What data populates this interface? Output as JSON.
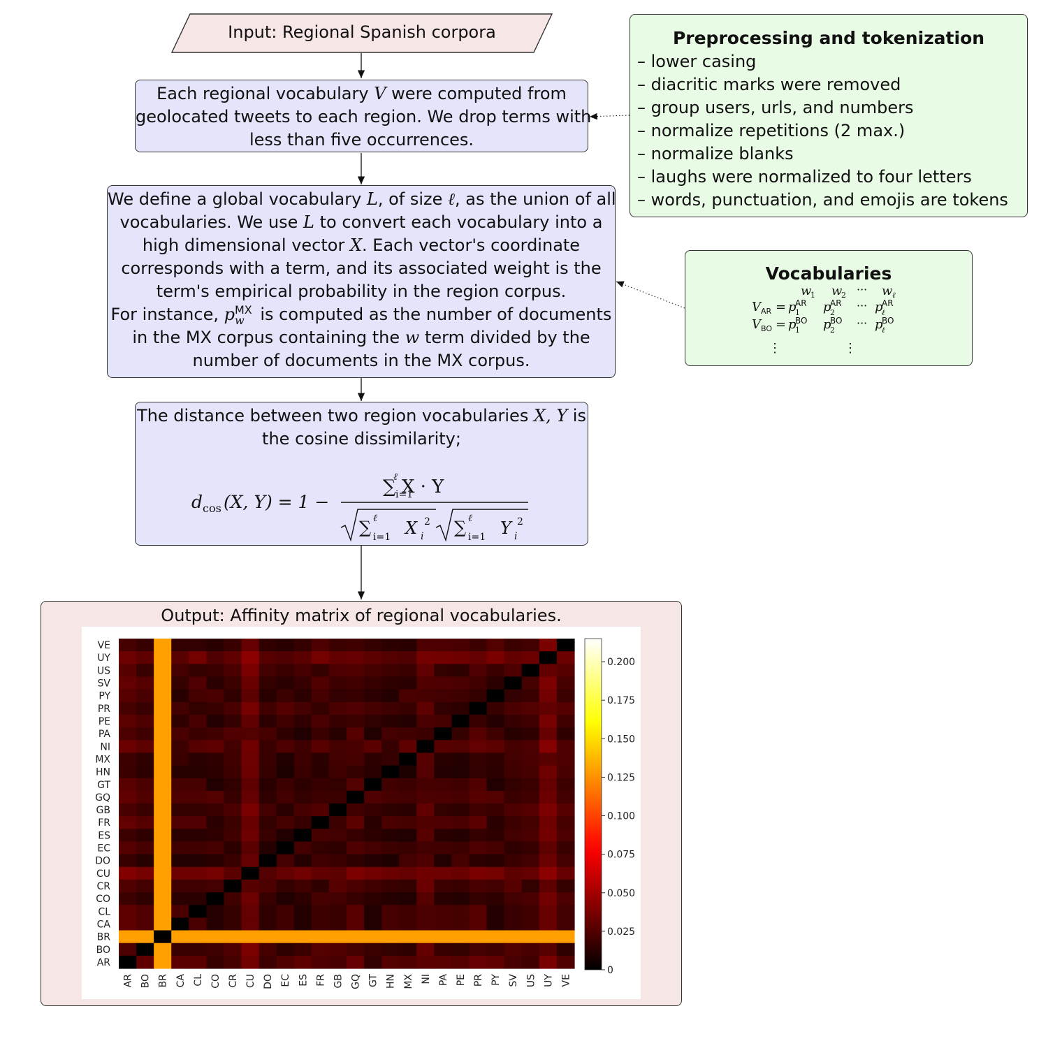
{
  "input": {
    "label": "Input:  Regional Spanish corpora"
  },
  "step1": {
    "lines": [
      [
        "Each regional vocabulary ",
        "V",
        " were computed from"
      ],
      [
        "geolocated tweets to each region. We drop terms with"
      ],
      [
        "less than five occurrences."
      ]
    ]
  },
  "step2": {
    "lines": [
      [
        "We define a global vocabulary ",
        "L",
        ", of size ",
        "ℓ",
        ", as the union of all"
      ],
      [
        "vocabularies.  We use ",
        "L",
        " to convert each vocabulary into a"
      ],
      [
        "high dimensional vector ",
        "X",
        ". Each vector's coordinate"
      ],
      [
        "corresponds with a term, and its associated weight is the"
      ],
      [
        "term's empirical probability in the region corpus."
      ],
      [
        "For instance, ",
        "p",
        " is computed as the number of documents"
      ],
      [
        "in the MX corpus containing the ",
        "w",
        " term divided by the"
      ],
      [
        "number of documents in the MX corpus."
      ]
    ],
    "p_sup": "MX",
    "p_sub": "w"
  },
  "step3": {
    "lines": [
      [
        "The distance between two region vocabularies ",
        "X, Y",
        " is"
      ],
      [
        "the cosine dissimilarity;"
      ]
    ],
    "formula": {
      "lhs_d": "d",
      "lhs_sub": "cos",
      "lhs_args": "(X, Y) = 1 − ",
      "num": "∑ X · Y",
      "sum_upper": "ℓ",
      "sum_lower": "i=1",
      "den_x": "X",
      "den_y": "Y",
      "idx": "i",
      "sq": "2"
    }
  },
  "output": {
    "label": "Output:  Affinity matrix of regional vocabularies."
  },
  "preprocessing": {
    "title": "Preprocessing and tokenization",
    "items": [
      "– lower casing",
      "– diacritic marks were removed",
      "– group users, urls, and numbers",
      "– normalize repetitions (2 max.)",
      "– normalize blanks",
      "– laughs were normalized to four letters",
      "– words, punctuation, and emojis are tokens"
    ]
  },
  "vocabularies": {
    "title": "Vocabularies",
    "header": [
      "w",
      "1",
      "w",
      "2",
      "···",
      "w",
      "ℓ"
    ],
    "rows": [
      {
        "v": "V",
        "vsub": "AR",
        "p": "p",
        "sup": "AR"
      },
      {
        "v": "V",
        "vsub": "BO",
        "p": "p",
        "sup": "BO"
      }
    ],
    "dots": "⋮"
  },
  "colors": {
    "blue_box": "#e4e4fb",
    "green_box": "#e8fbe4",
    "pink_box": "#f6e6e6"
  },
  "chart_data": {
    "type": "heatmap",
    "title": "",
    "xlabel": "",
    "ylabel": "",
    "x_labels": [
      "AR",
      "BO",
      "BR",
      "CA",
      "CL",
      "CO",
      "CR",
      "CU",
      "DO",
      "EC",
      "ES",
      "FR",
      "GB",
      "GQ",
      "GT",
      "HN",
      "MX",
      "NI",
      "PA",
      "PE",
      "PR",
      "PY",
      "SV",
      "US",
      "UY",
      "VE"
    ],
    "y_labels_top_to_bottom": [
      "VE",
      "UY",
      "US",
      "SV",
      "PY",
      "PR",
      "PE",
      "PA",
      "NI",
      "MX",
      "HN",
      "GT",
      "GQ",
      "GB",
      "FR",
      "ES",
      "EC",
      "DO",
      "CU",
      "CR",
      "CO",
      "CL",
      "CA",
      "BR",
      "BO",
      "AR"
    ],
    "colorbar": {
      "min": 0,
      "max": 0.215,
      "ticks": [
        "0",
        "0.025",
        "0.050",
        "0.075",
        "0.100",
        "0.125",
        "0.150",
        "0.175",
        "0.200"
      ],
      "colormap": "hot"
    },
    "values_by_country": {
      "AR": 0.029,
      "BO": 0.02,
      "BR": 0.165,
      "CA": 0.017,
      "CL": 0.017,
      "CO": 0.016,
      "CR": 0.021,
      "CU": 0.044,
      "DO": 0.016,
      "EC": 0.016,
      "ES": 0.016,
      "FR": 0.02,
      "GB": 0.02,
      "GQ": 0.025,
      "GT": 0.014,
      "HN": 0.014,
      "MX": 0.016,
      "NI": 0.032,
      "PA": 0.016,
      "PE": 0.016,
      "PR": 0.024,
      "PY": 0.018,
      "SV": 0.02,
      "US": 0.02,
      "UY": 0.045,
      "VE": 0.021
    },
    "diagonal": 0
  }
}
